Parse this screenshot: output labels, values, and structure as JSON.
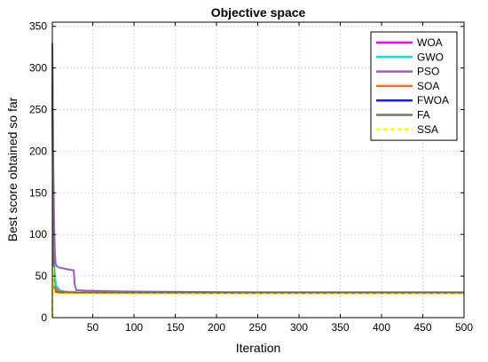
{
  "chart_data": {
    "type": "line",
    "title": "Objective space",
    "xlabel": "Iteration",
    "ylabel": "Best score obtained so far",
    "xlim": [
      1,
      500
    ],
    "ylim": [
      0,
      355
    ],
    "xticks": [
      50,
      100,
      150,
      200,
      250,
      300,
      350,
      400,
      450,
      500
    ],
    "yticks": [
      0,
      50,
      100,
      150,
      200,
      250,
      300,
      350
    ],
    "grid": true,
    "legend_position": "top-right",
    "series": [
      {
        "name": "WOA",
        "color": "#ff00ff",
        "dash": "solid",
        "x": [
          1,
          2,
          3,
          5,
          8,
          15,
          30,
          60,
          100,
          200,
          300,
          400,
          500
        ],
        "y": [
          310,
          120,
          45,
          36,
          33,
          31.5,
          30.5,
          30.1,
          29.9,
          29.8,
          29.75,
          29.7,
          29.7
        ]
      },
      {
        "name": "GWO",
        "color": "#00e5ee",
        "dash": "solid",
        "x": [
          1,
          2,
          3,
          4,
          6,
          10,
          15,
          20,
          40,
          80,
          150,
          300,
          500
        ],
        "y": [
          330,
          160,
          80,
          50,
          38,
          33,
          31.5,
          30.8,
          30.2,
          29.9,
          29.8,
          29.75,
          29.7
        ]
      },
      {
        "name": "PSO",
        "color": "#9b59d0",
        "dash": "solid",
        "x": [
          1,
          2,
          3,
          4,
          5,
          6,
          8,
          10,
          15,
          20,
          25,
          27,
          28,
          30,
          40,
          60,
          90,
          150,
          250,
          500
        ],
        "y": [
          330,
          200,
          120,
          80,
          65,
          62,
          61,
          60,
          59,
          58,
          57,
          57,
          40,
          33,
          32.5,
          32,
          31.5,
          31,
          30.5,
          30.5
        ]
      },
      {
        "name": "SOA",
        "color": "#ff6a1a",
        "dash": "solid",
        "x": [
          1,
          2,
          3,
          5,
          8,
          15,
          30,
          60,
          100,
          200,
          300,
          400,
          500
        ],
        "y": [
          305,
          100,
          40,
          34,
          32,
          31,
          30.5,
          30.2,
          30,
          29.8,
          29.7,
          29.7,
          29.7
        ]
      },
      {
        "name": "FWOA",
        "color": "#1a1aff",
        "dash": "solid",
        "x": [
          1,
          2,
          3,
          5,
          10,
          20,
          40,
          100,
          200,
          300,
          400,
          500
        ],
        "y": [
          290,
          80,
          35,
          31,
          30.2,
          29.9,
          29.8,
          29.75,
          29.7,
          29.7,
          29.7,
          29.7
        ]
      },
      {
        "name": "FA",
        "color": "#6b7b5b",
        "dash": "solid",
        "x": [
          1,
          2,
          3,
          5,
          10,
          20,
          40,
          100,
          200,
          300,
          400,
          500
        ],
        "y": [
          320,
          90,
          34,
          31,
          30,
          29.8,
          29.7,
          29.7,
          29.65,
          29.65,
          29.65,
          29.65
        ]
      },
      {
        "name": "SSA",
        "color": "#ffff00",
        "dash": "dashed",
        "x": [
          1,
          2,
          3,
          5,
          10,
          20,
          50,
          100,
          200,
          300,
          400,
          500
        ],
        "y": [
          0,
          60,
          29,
          28.5,
          28.3,
          28.2,
          28.1,
          28.1,
          28.1,
          28.1,
          28.1,
          28.1
        ]
      }
    ]
  }
}
